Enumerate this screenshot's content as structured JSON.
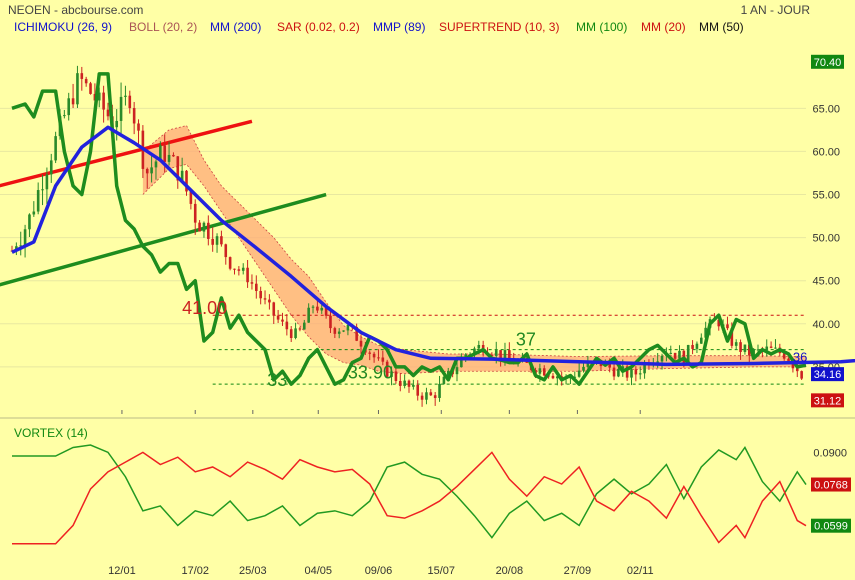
{
  "header": {
    "title": "NEOEN - abcbourse.com",
    "period": "1 AN - JOUR"
  },
  "legend": [
    {
      "label": "ICHIMOKU (26, 9)",
      "color": "#1111CC"
    },
    {
      "label": "BOLL (20, 2)",
      "color": "#AA5555"
    },
    {
      "label": "MM (200)",
      "color": "#1111CC"
    },
    {
      "label": "SAR (0.02, 0.2)",
      "color": "#CC1111"
    },
    {
      "label": "MMP (89)",
      "color": "#1111CC"
    },
    {
      "label": "SUPERTREND (10, 3)",
      "color": "#CC1111"
    },
    {
      "label": "MM (100)",
      "color": "#118811"
    },
    {
      "label": "MM (20)",
      "color": "#CC1111"
    },
    {
      "label": "MM (50)",
      "color": "#111111"
    }
  ],
  "colors": {
    "background": "#FFFFA6",
    "price_up": "#2a8a2a",
    "price_down": "#cc2222",
    "cloud": "#FFAA77",
    "ma_blue": "#2222DD",
    "trend_green": "#1E8C1E",
    "trend_red": "#EE1111",
    "vortex_plus": "#229922",
    "vortex_minus": "#EE2222"
  },
  "chart_data": {
    "type": "candlestick",
    "x_ticks": [
      "12/01",
      "17/02",
      "25/03",
      "04/05",
      "09/06",
      "15/07",
      "20/08",
      "27/09",
      "02/11"
    ],
    "y_ticks": [
      35,
      40,
      45,
      50,
      55,
      60,
      65
    ],
    "ylim": [
      30,
      72
    ],
    "price_badges": [
      {
        "label": "70.40",
        "value": 70.4,
        "bg": "#118811"
      },
      {
        "label": "34.16",
        "value": 34.16,
        "bg": "#1111CC"
      },
      {
        "label": "31.12",
        "value": 31.12,
        "bg": "#CC1111"
      }
    ],
    "levels": [
      {
        "value": 41,
        "label": "41.00",
        "color": "#CC1111"
      },
      {
        "value": 37,
        "label": "37",
        "color": "#118811"
      },
      {
        "value": 33,
        "label": "33",
        "color": "#118811"
      }
    ],
    "extra_labels": [
      "33.90",
      "36"
    ],
    "ohlc_anchors": [
      [
        48.5,
        48.0
      ],
      [
        52.0,
        52.0
      ],
      [
        58.0,
        57.0
      ],
      [
        63.5,
        62.0
      ],
      [
        68.5,
        67.0
      ],
      [
        66.0,
        65.0
      ],
      [
        63.5,
        62.0
      ],
      [
        66.5,
        66.0
      ],
      [
        57.5,
        56.0
      ],
      [
        60.0,
        60.0
      ],
      [
        57.5,
        56.0
      ],
      [
        52.0,
        51.0
      ],
      [
        50.5,
        49.0
      ],
      [
        47.0,
        46.0
      ],
      [
        45.5,
        45.0
      ],
      [
        42.5,
        41.0
      ],
      [
        40.0,
        39.0
      ],
      [
        38.5,
        38.0
      ],
      [
        42.5,
        42.0
      ],
      [
        39.5,
        39.0
      ],
      [
        39.5,
        39.0
      ],
      [
        37.5,
        37.0
      ],
      [
        35.0,
        35.0
      ],
      [
        33.5,
        33.0
      ],
      [
        32.0,
        32.5
      ],
      [
        31.5,
        31.0
      ],
      [
        34.0,
        34.0
      ],
      [
        36.5,
        36.5
      ],
      [
        37.5,
        38.0
      ],
      [
        36.5,
        37.0
      ],
      [
        35.5,
        35.5
      ],
      [
        35.0,
        35.0
      ],
      [
        34.5,
        34.0
      ],
      [
        33.5,
        33.5
      ],
      [
        35.0,
        35.0
      ],
      [
        35.5,
        35.5
      ],
      [
        34.5,
        34.5
      ],
      [
        34.0,
        34.0
      ],
      [
        36.0,
        36.0
      ],
      [
        37.0,
        37.0
      ],
      [
        36.0,
        36.0
      ],
      [
        39.0,
        39.0
      ],
      [
        40.5,
        40.5
      ],
      [
        37.5,
        37.0
      ],
      [
        36.5,
        36.5
      ],
      [
        37.0,
        37.0
      ],
      [
        36.5,
        36.5
      ],
      [
        34.16,
        34.16
      ]
    ],
    "ma200": [
      [
        0,
        48.3
      ],
      [
        5,
        49.5
      ],
      [
        10,
        56
      ],
      [
        16,
        60.5
      ],
      [
        22,
        62.8
      ],
      [
        28,
        61
      ],
      [
        34,
        59
      ],
      [
        40,
        56
      ],
      [
        48,
        52
      ],
      [
        56,
        48.8
      ],
      [
        64,
        45.5
      ],
      [
        72,
        42
      ],
      [
        80,
        39
      ],
      [
        88,
        37
      ],
      [
        96,
        36
      ],
      [
        110,
        35.9
      ],
      [
        130,
        35.6
      ],
      [
        150,
        35.3
      ],
      [
        170,
        35.4
      ],
      [
        190,
        35.6
      ],
      [
        205,
        36.2
      ],
      [
        215,
        36.6
      ],
      [
        225,
        36.8
      ]
    ],
    "series_green": [
      [
        0,
        65
      ],
      [
        3,
        65.5
      ],
      [
        5,
        64
      ],
      [
        7,
        67
      ],
      [
        10,
        67
      ],
      [
        12,
        60
      ],
      [
        14,
        56
      ],
      [
        16,
        55
      ],
      [
        18,
        60
      ],
      [
        20,
        69
      ],
      [
        22,
        69
      ],
      [
        24,
        56
      ],
      [
        26,
        52
      ],
      [
        28,
        51
      ],
      [
        30,
        49
      ],
      [
        32,
        48
      ],
      [
        34,
        46
      ],
      [
        36,
        47
      ],
      [
        38,
        47
      ],
      [
        40,
        44
      ],
      [
        42,
        45
      ],
      [
        44,
        38
      ],
      [
        46,
        39
      ],
      [
        48,
        43
      ],
      [
        50,
        39.5
      ],
      [
        52,
        41
      ],
      [
        54,
        39
      ],
      [
        56,
        38
      ],
      [
        58,
        37
      ],
      [
        60,
        33.5
      ],
      [
        62,
        34.5
      ],
      [
        64,
        33
      ],
      [
        66,
        34
      ],
      [
        68,
        36
      ],
      [
        70,
        37
      ],
      [
        72,
        35
      ],
      [
        74,
        33
      ],
      [
        76,
        33.5
      ],
      [
        78,
        35.5
      ],
      [
        80,
        36
      ],
      [
        82,
        38.5
      ],
      [
        84,
        38
      ],
      [
        86,
        37
      ],
      [
        88,
        35
      ],
      [
        90,
        35
      ],
      [
        92,
        34
      ],
      [
        94,
        35
      ],
      [
        96,
        34.5
      ],
      [
        98,
        35
      ],
      [
        100,
        33.5
      ],
      [
        102,
        36
      ],
      [
        104,
        36
      ],
      [
        106,
        36.5
      ],
      [
        108,
        37
      ],
      [
        110,
        36
      ],
      [
        112,
        35.8
      ],
      [
        114,
        35.5
      ],
      [
        116,
        35.5
      ],
      [
        118,
        36.5
      ],
      [
        120,
        34
      ],
      [
        122,
        33.5
      ],
      [
        124,
        35
      ],
      [
        126,
        33.5
      ],
      [
        128,
        34
      ],
      [
        130,
        33
      ],
      [
        132,
        34.5
      ],
      [
        134,
        36
      ],
      [
        136,
        35.2
      ],
      [
        138,
        36
      ],
      [
        140,
        34.5
      ],
      [
        142,
        35
      ],
      [
        144,
        36
      ],
      [
        146,
        37
      ],
      [
        148,
        37.5
      ],
      [
        150,
        36.5
      ],
      [
        152,
        35.5
      ],
      [
        154,
        36
      ],
      [
        156,
        35
      ],
      [
        158,
        35.5
      ],
      [
        160,
        40
      ],
      [
        162,
        41
      ],
      [
        164,
        38
      ],
      [
        166,
        40.5
      ],
      [
        168,
        40
      ],
      [
        170,
        36
      ],
      [
        172,
        37
      ],
      [
        174,
        36.5
      ],
      [
        176,
        37
      ],
      [
        178,
        36.5
      ],
      [
        180,
        35
      ],
      [
        182,
        35.2
      ]
    ],
    "cloud_upper": [
      [
        30,
        60
      ],
      [
        36,
        62.5
      ],
      [
        40,
        63
      ],
      [
        44,
        59
      ],
      [
        48,
        56
      ],
      [
        52,
        54
      ],
      [
        56,
        52
      ],
      [
        60,
        50
      ],
      [
        64,
        47.5
      ],
      [
        68,
        45.5
      ],
      [
        72,
        42.5
      ],
      [
        76,
        39.8
      ],
      [
        80,
        38.5
      ],
      [
        84,
        37.5
      ],
      [
        90,
        37
      ],
      [
        100,
        36.5
      ],
      [
        110,
        36.5
      ],
      [
        130,
        36.2
      ],
      [
        150,
        36.3
      ],
      [
        170,
        36.3
      ],
      [
        182,
        36.2
      ]
    ],
    "cloud_lower": [
      [
        30,
        55
      ],
      [
        36,
        58
      ],
      [
        40,
        58.5
      ],
      [
        44,
        56
      ],
      [
        48,
        53
      ],
      [
        52,
        50
      ],
      [
        56,
        47
      ],
      [
        60,
        44
      ],
      [
        64,
        41
      ],
      [
        68,
        38.5
      ],
      [
        72,
        36.5
      ],
      [
        76,
        35.5
      ],
      [
        80,
        35.2
      ],
      [
        84,
        34.5
      ],
      [
        90,
        34.2
      ],
      [
        100,
        34.5
      ],
      [
        110,
        34.5
      ],
      [
        130,
        34.5
      ],
      [
        150,
        34.8
      ],
      [
        170,
        35
      ],
      [
        182,
        35
      ]
    ],
    "trend_red": [
      [
        -3,
        56
      ],
      [
        55,
        63.5
      ]
    ],
    "trend_green": [
      [
        -3,
        44.5
      ],
      [
        72,
        55
      ]
    ],
    "vortex": {
      "title": "VORTEX (14)",
      "y_ticks": [
        {
          "label": "0.0900",
          "value": 0.09
        }
      ],
      "ylim": [
        0.045,
        0.1
      ],
      "plus_badge": {
        "label": "0.0768",
        "value": 0.0768,
        "bg": "#CC1111"
      },
      "minus_badge": {
        "label": "0.0599",
        "value": 0.0599,
        "bg": "#118811"
      },
      "plus": [
        [
          0,
          0.0885
        ],
        [
          10,
          0.0885
        ],
        [
          14,
          0.092
        ],
        [
          18,
          0.093
        ],
        [
          22,
          0.09
        ],
        [
          26,
          0.08
        ],
        [
          30,
          0.066
        ],
        [
          34,
          0.068
        ],
        [
          38,
          0.06
        ],
        [
          42,
          0.066
        ],
        [
          46,
          0.064
        ],
        [
          50,
          0.07
        ],
        [
          54,
          0.062
        ],
        [
          58,
          0.064
        ],
        [
          62,
          0.068
        ],
        [
          66,
          0.06
        ],
        [
          70,
          0.065
        ],
        [
          74,
          0.066
        ],
        [
          78,
          0.064
        ],
        [
          82,
          0.07
        ],
        [
          86,
          0.084
        ],
        [
          90,
          0.086
        ],
        [
          94,
          0.081
        ],
        [
          98,
          0.079
        ],
        [
          102,
          0.072
        ],
        [
          106,
          0.064
        ],
        [
          110,
          0.055
        ],
        [
          114,
          0.065
        ],
        [
          118,
          0.07
        ],
        [
          122,
          0.062
        ],
        [
          126,
          0.065
        ],
        [
          130,
          0.06
        ],
        [
          134,
          0.073
        ],
        [
          138,
          0.079
        ],
        [
          142,
          0.073
        ],
        [
          146,
          0.077
        ],
        [
          150,
          0.085
        ],
        [
          154,
          0.071
        ],
        [
          158,
          0.084
        ],
        [
          162,
          0.091
        ],
        [
          166,
          0.087
        ],
        [
          168,
          0.092
        ],
        [
          172,
          0.078
        ],
        [
          176,
          0.07
        ],
        [
          180,
          0.082
        ],
        [
          182,
          0.0768
        ]
      ],
      "minus": [
        [
          0,
          0.0525
        ],
        [
          10,
          0.0525
        ],
        [
          14,
          0.06
        ],
        [
          18,
          0.075
        ],
        [
          22,
          0.082
        ],
        [
          26,
          0.086
        ],
        [
          30,
          0.09
        ],
        [
          34,
          0.085
        ],
        [
          38,
          0.088
        ],
        [
          42,
          0.082
        ],
        [
          46,
          0.084
        ],
        [
          50,
          0.08
        ],
        [
          54,
          0.086
        ],
        [
          58,
          0.083
        ],
        [
          62,
          0.079
        ],
        [
          66,
          0.087
        ],
        [
          70,
          0.084
        ],
        [
          74,
          0.082
        ],
        [
          78,
          0.083
        ],
        [
          82,
          0.077
        ],
        [
          86,
          0.064
        ],
        [
          90,
          0.063
        ],
        [
          94,
          0.066
        ],
        [
          98,
          0.07
        ],
        [
          102,
          0.076
        ],
        [
          106,
          0.083
        ],
        [
          110,
          0.09
        ],
        [
          114,
          0.079
        ],
        [
          118,
          0.072
        ],
        [
          122,
          0.08
        ],
        [
          126,
          0.077
        ],
        [
          130,
          0.084
        ],
        [
          134,
          0.07
        ],
        [
          138,
          0.066
        ],
        [
          142,
          0.074
        ],
        [
          146,
          0.07
        ],
        [
          150,
          0.063
        ],
        [
          154,
          0.076
        ],
        [
          158,
          0.064
        ],
        [
          162,
          0.053
        ],
        [
          166,
          0.06
        ],
        [
          168,
          0.055
        ],
        [
          172,
          0.07
        ],
        [
          176,
          0.078
        ],
        [
          180,
          0.062
        ],
        [
          182,
          0.0599
        ]
      ]
    }
  }
}
